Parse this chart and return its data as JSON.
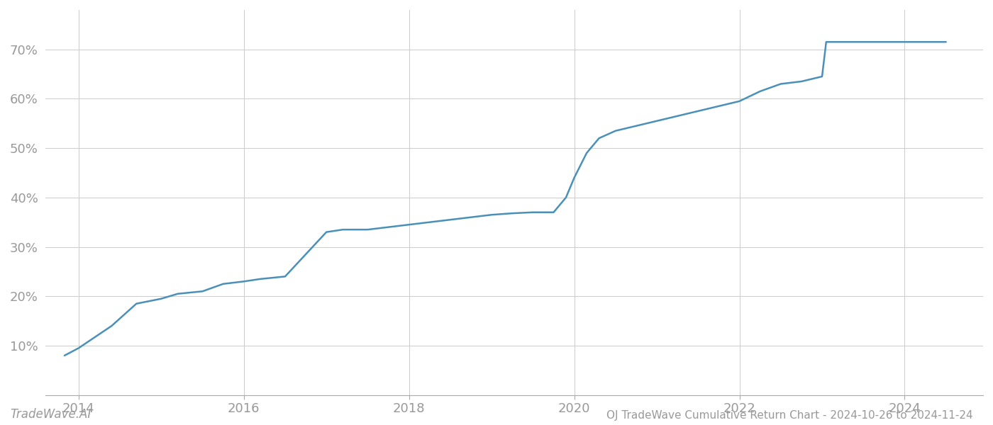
{
  "title": "OJ TradeWave Cumulative Return Chart - 2024-10-26 to 2024-11-24",
  "watermark": "TradeWave.AI",
  "line_color": "#4a90b8",
  "line_width": 1.8,
  "background_color": "#ffffff",
  "grid_color": "#cccccc",
  "xlabel_color": "#999999",
  "ylabel_color": "#999999",
  "title_color": "#999999",
  "x_values": [
    2013.83,
    2014.0,
    2014.4,
    2014.7,
    2015.0,
    2015.2,
    2015.5,
    2015.75,
    2016.0,
    2016.2,
    2016.5,
    2017.0,
    2017.2,
    2017.5,
    2018.0,
    2018.25,
    2018.5,
    2018.75,
    2019.0,
    2019.25,
    2019.5,
    2019.75,
    2019.9,
    2020.0,
    2020.15,
    2020.3,
    2020.5,
    2020.75,
    2021.0,
    2021.25,
    2021.5,
    2021.75,
    2022.0,
    2022.25,
    2022.5,
    2022.75,
    2023.0,
    2023.05,
    2023.75,
    2024.0,
    2024.5
  ],
  "y_values": [
    8.0,
    9.5,
    14.0,
    18.5,
    19.5,
    20.5,
    21.0,
    22.5,
    23.0,
    23.5,
    24.0,
    33.0,
    33.5,
    33.5,
    34.5,
    35.0,
    35.5,
    36.0,
    36.5,
    36.8,
    37.0,
    37.0,
    40.0,
    44.0,
    49.0,
    52.0,
    53.5,
    54.5,
    55.5,
    56.5,
    57.5,
    58.5,
    59.5,
    61.5,
    63.0,
    63.5,
    64.5,
    71.5,
    71.5,
    71.5,
    71.5
  ],
  "xlim": [
    2013.6,
    2024.95
  ],
  "ylim": [
    0,
    78
  ],
  "yticks": [
    10,
    20,
    30,
    40,
    50,
    60,
    70
  ],
  "xticks": [
    2014,
    2016,
    2018,
    2020,
    2022,
    2024
  ],
  "tick_fontsize": 13,
  "title_fontsize": 11,
  "watermark_fontsize": 12
}
